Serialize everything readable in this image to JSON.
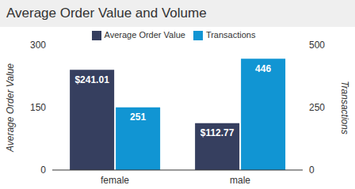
{
  "chart_data": {
    "type": "bar",
    "title": "Average Order Value and Volume",
    "categories": [
      "female",
      "male"
    ],
    "series": [
      {
        "name": "Average Order Value",
        "color": "#363f5f",
        "values": [
          241.01,
          112.77
        ],
        "value_labels": [
          "$241.01",
          "$112.77"
        ]
      },
      {
        "name": "Transactions",
        "color": "#1195d3",
        "values": [
          251,
          446
        ],
        "axis": "y2"
      }
    ],
    "ylabel": "Average Order Value",
    "y2label": "Transactions",
    "ylim": [
      0,
      300
    ],
    "yticks": [
      0,
      150,
      300
    ],
    "y2lim": [
      0,
      500
    ],
    "y2ticks": [
      0,
      250,
      500
    ],
    "data_labels": true,
    "legend": "top",
    "grid": false
  }
}
